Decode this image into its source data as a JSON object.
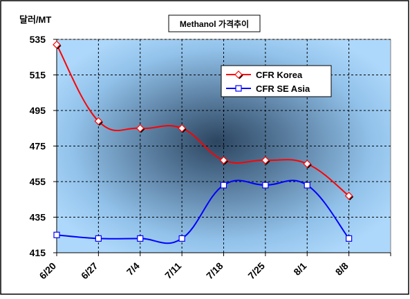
{
  "chart_data": {
    "type": "line",
    "title": "Methanol 가격추이",
    "ylabel": "달러/MT",
    "xlabel": "",
    "categories": [
      "6/20",
      "6/27",
      "7/4",
      "7/11",
      "7/18",
      "7/25",
      "8/1",
      "8/8"
    ],
    "ylim": [
      415,
      535
    ],
    "yticks": [
      535,
      515,
      495,
      475,
      455,
      435,
      415
    ],
    "grid": true,
    "legend_position": "top-right",
    "series": [
      {
        "name": "CFR Korea",
        "values": [
          532,
          489,
          485,
          485,
          467,
          467,
          465,
          447
        ],
        "color": "#ff0000",
        "marker": "diamond"
      },
      {
        "name": "CFR SE Asia",
        "values": [
          425,
          423,
          423,
          423,
          453,
          453,
          453,
          423
        ],
        "color": "#0000ff",
        "marker": "square"
      }
    ]
  },
  "colors": {
    "plot_bg_center": "#2f4a66",
    "plot_bg_edge": "#a8d4f8",
    "grid": "#000000",
    "frame": "#000000"
  }
}
